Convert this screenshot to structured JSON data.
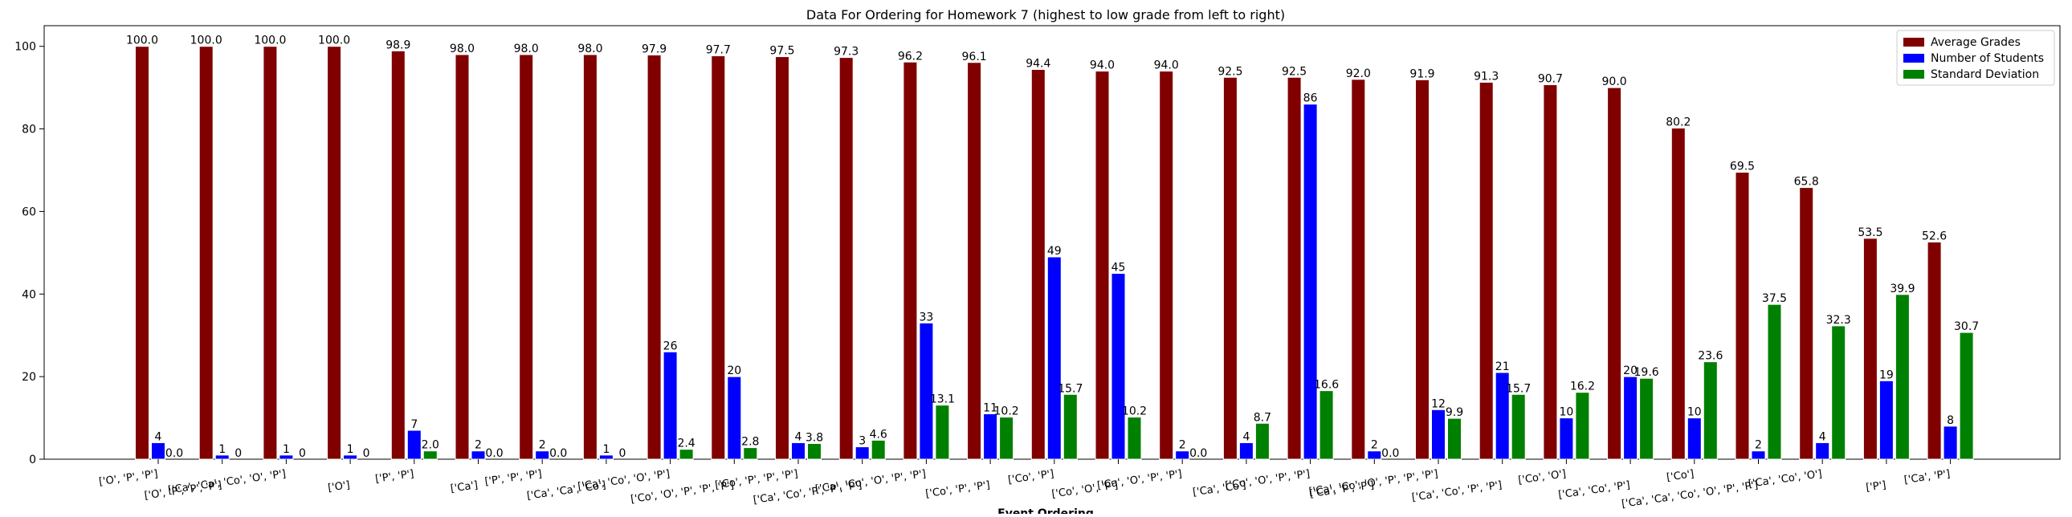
{
  "chart_data": {
    "type": "bar",
    "title": "Data For Ordering for Homework 7 (highest to low grade from left to right)",
    "xlabel": "Event Ordering",
    "ylabel": "",
    "ylim": [
      0,
      105
    ],
    "yticks": [
      0,
      20,
      40,
      60,
      80,
      100
    ],
    "legend_position": "top-right",
    "categories": [
      "['O', 'P', 'P']",
      "['O', 'P', 'P', 'P']",
      "['Ca', 'Ca', 'Co', 'O', 'P']",
      "['O']",
      "['P', 'P']",
      "['Ca']",
      "['P', 'P', 'P']",
      "['Ca', 'Ca', 'Co']",
      "['Ca', 'Co', 'O', 'P']",
      "['Co', 'O', 'P', 'P', 'P']",
      "['Co', 'P', 'P', 'P']",
      "['Ca', 'Co', 'P', 'P', 'P']",
      "['Ca', 'Co', 'O', 'P', 'P']",
      "['Co', 'P', 'P']",
      "['Co', 'P']",
      "['Co', 'O', 'P']",
      "['Ca', 'O', 'P', 'P']",
      "['Ca', 'Co']",
      "['Co', 'O', 'P', 'P']",
      "['Ca', 'P', 'P']",
      "['Ca', 'Co', 'O', 'P', 'P', 'P']",
      "['Ca', 'Co', 'P', 'P']",
      "['Co', 'O']",
      "['Ca', 'Co', 'P']",
      "['Co']",
      "['Ca', 'Ca', 'Co', 'O', 'P', 'P']",
      "['Ca', 'Co', 'O']",
      "['P']",
      "['Ca', 'P']"
    ],
    "series": [
      {
        "name": "Average Grades",
        "color": "#800000",
        "values": [
          100.0,
          100.0,
          100.0,
          100.0,
          98.9,
          98.0,
          98.0,
          98.0,
          97.9,
          97.7,
          97.5,
          97.3,
          96.2,
          96.1,
          94.4,
          94.0,
          94.0,
          92.5,
          92.5,
          92.0,
          91.9,
          91.3,
          90.7,
          90.0,
          80.2,
          69.5,
          65.8,
          53.5,
          52.6
        ],
        "labels": [
          "100.0",
          "100.0",
          "100.0",
          "100.0",
          "98.9",
          "98.0",
          "98.0",
          "98.0",
          "97.9",
          "97.7",
          "97.5",
          "97.3",
          "96.2",
          "96.1",
          "94.4",
          "94.0",
          "94.0",
          "92.5",
          "92.5",
          "92.0",
          "91.9",
          "91.3",
          "90.7",
          "90.0",
          "80.2",
          "69.5",
          "65.8",
          "53.5",
          "52.6"
        ]
      },
      {
        "name": "Number of Students",
        "color": "#0000ff",
        "values": [
          4,
          1,
          1,
          1,
          7,
          2,
          2,
          1,
          26,
          20,
          4,
          3,
          33,
          11,
          49,
          45,
          2,
          4,
          86,
          2,
          12,
          21,
          10,
          20,
          10,
          2,
          4,
          19,
          8
        ],
        "labels": [
          "4",
          "1",
          "1",
          "1",
          "7",
          "2",
          "2",
          "1",
          "26",
          "20",
          "4",
          "3",
          "33",
          "11",
          "49",
          "45",
          "2",
          "4",
          "86",
          "2",
          "12",
          "21",
          "10",
          "20",
          "10",
          "2",
          "4",
          "19",
          "8"
        ]
      },
      {
        "name": "Standard Deviation",
        "color": "#008000",
        "values": [
          0.0,
          0,
          0,
          0,
          2.0,
          0.0,
          0.0,
          0,
          2.4,
          2.8,
          3.8,
          4.6,
          13.1,
          10.2,
          15.7,
          10.2,
          0.0,
          8.7,
          16.6,
          0.0,
          9.9,
          15.7,
          16.2,
          19.6,
          23.6,
          37.5,
          32.3,
          39.9,
          30.7
        ],
        "labels": [
          "0.0",
          "0",
          "0",
          "0",
          "2.0",
          "0.0",
          "0.0",
          "0",
          "2.4",
          "2.8",
          "3.8",
          "4.6",
          "13.1",
          "10.2",
          "15.7",
          "10.2",
          "0.0",
          "8.7",
          "16.6",
          "0.0",
          "9.9",
          "15.7",
          "16.2",
          "19.6",
          "23.6",
          "37.5",
          "32.3",
          "39.9",
          "30.7"
        ]
      }
    ]
  }
}
